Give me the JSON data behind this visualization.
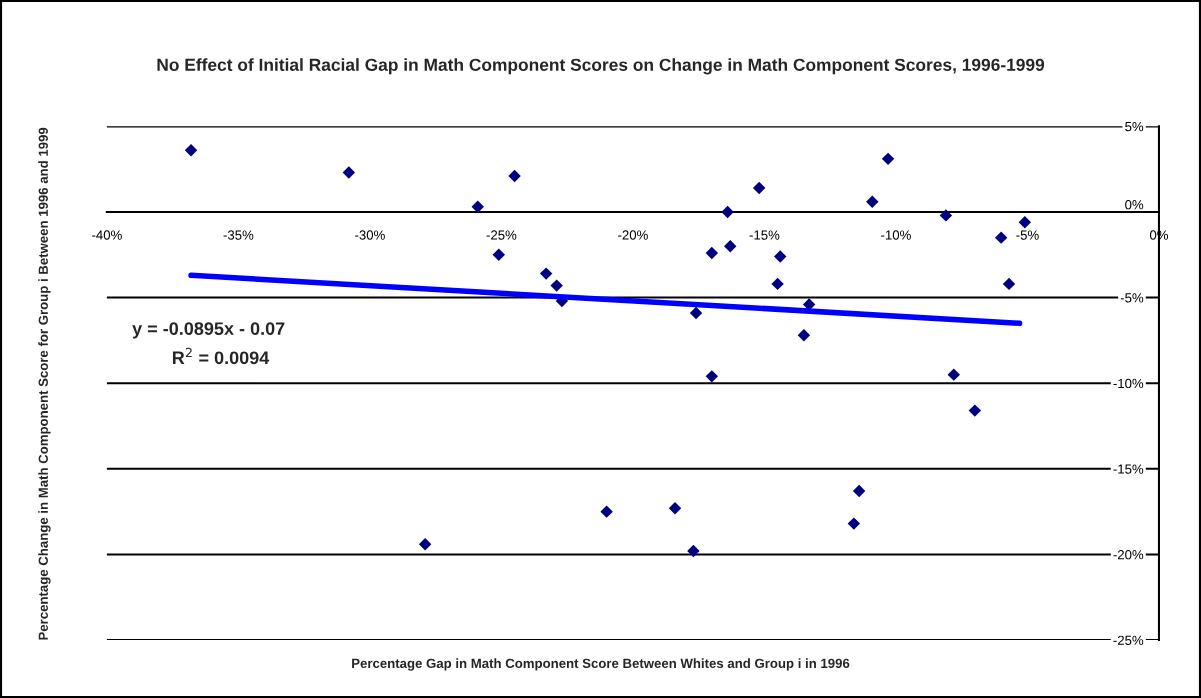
{
  "chart_data": {
    "type": "scatter",
    "title": "No Effect of Initial Racial Gap in Math Component Scores on Change in Math Component Scores, 1996-1999",
    "xlabel": "Percentage Gap in Math Component Score Between Whites and Group i in 1996",
    "ylabel": "Percentage Change in Math Component Score for Group i Between 1996 and 1999",
    "series": [
      {
        "color": "#000080",
        "marker": "diamond",
        "x": [
          -36.8,
          -30.8,
          -24.5,
          -25.9,
          -16.4,
          -15.2,
          -10.3,
          -10.9,
          -8.1,
          -5.1,
          -6.0,
          -16.3,
          -17.0,
          -14.4,
          -25.1,
          -23.3,
          -22.9,
          -22.7,
          -14.5,
          -5.7,
          -13.3,
          -17.6,
          -13.5,
          -17.0,
          -7.8,
          -7.0,
          -11.4,
          -11.6,
          -21.0,
          -18.4,
          -27.9,
          -17.7
        ],
        "values": [
          3.6,
          2.3,
          2.1,
          0.3,
          0.0,
          1.4,
          3.1,
          0.6,
          -0.2,
          -0.6,
          -1.5,
          -2.0,
          -2.4,
          -2.6,
          -2.5,
          -3.6,
          -4.3,
          -5.2,
          -4.2,
          -4.2,
          -5.4,
          -5.9,
          -7.2,
          -9.6,
          -9.5,
          -11.6,
          -16.3,
          -18.2,
          -17.5,
          -17.3,
          -19.4,
          -19.8
        ]
      },
      {
        "type": "line",
        "color": "#0000ff",
        "x": [
          -36.8,
          -5.3
        ],
        "values": [
          -3.7,
          -6.5
        ]
      }
    ],
    "annotations": [
      "y = -0.0895x - 0.07",
      "R$^{2}$ = 0.0094"
    ],
    "xlim": [
      -40,
      0
    ],
    "xticks": [
      {
        "value": -40,
        "label": "-40%"
      },
      {
        "value": -35,
        "label": "-35%"
      },
      {
        "value": -30,
        "label": "-30%"
      },
      {
        "value": -25,
        "label": "-25%"
      },
      {
        "value": -20,
        "label": "-20%"
      },
      {
        "value": -15,
        "label": "-15%"
      },
      {
        "value": -10,
        "label": "-10%"
      },
      {
        "value": -5,
        "label": "-5%"
      },
      {
        "value": 0,
        "label": "0%"
      }
    ],
    "ylim": [
      -25,
      5
    ],
    "yticks": [
      {
        "value": -25,
        "label": "-25%"
      },
      {
        "value": -20,
        "label": "-20%"
      },
      {
        "value": -15,
        "label": "-15%"
      },
      {
        "value": -10,
        "label": "-10%"
      },
      {
        "value": -5,
        "label": "-5%"
      },
      {
        "value": 0,
        "label": "0%"
      },
      {
        "value": 5,
        "label": "5%"
      }
    ],
    "grid": "y",
    "legend": false
  }
}
